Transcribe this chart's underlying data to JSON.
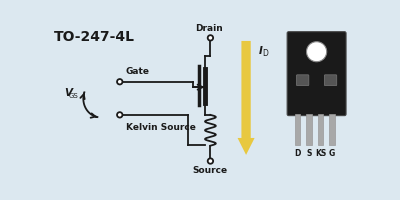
{
  "bg_color": "#dce8f0",
  "title": "TO-247-4L",
  "title_fontsize": 10,
  "title_fontweight": "bold",
  "gate_label": "Gate",
  "kelvin_label": "Kelvin Source",
  "drain_label": "Drain",
  "source_label": "Source",
  "pin_labels": [
    "D",
    "S",
    "KS",
    "G"
  ],
  "line_color": "#1a1a1a",
  "arrow_color": "#e8c840",
  "package_body_color": "#1a1a1a",
  "pin_color": "#a8a8a8",
  "node_fill": "#ffffff",
  "lw": 1.3
}
